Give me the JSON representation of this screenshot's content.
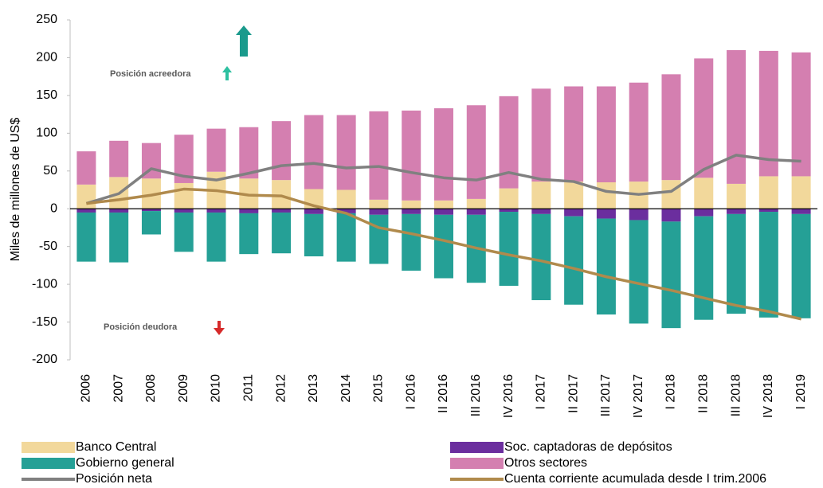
{
  "chart_data": {
    "type": "bar",
    "stacked": true,
    "ylabel": "Miles de millones de US$",
    "annotations": [
      "Posición acreedora",
      "Posición deudora"
    ],
    "categories": [
      "2006",
      "2007",
      "2008",
      "2009",
      "2010",
      "2011",
      "2012",
      "2013",
      "2014",
      "2015",
      "I 2016",
      "II 2016",
      "III 2016",
      "IV 2016",
      "I 2017",
      "II 2017",
      "III 2017",
      "IV 2017",
      "I 2018",
      "II 2018",
      "III 2018",
      "IV 2018",
      "I 2019"
    ],
    "ylim": [
      -200,
      250
    ],
    "yticks": [
      -200,
      -150,
      -100,
      -50,
      0,
      50,
      100,
      150,
      200,
      250
    ],
    "series": [
      {
        "name": "Banco Central",
        "color": "#f2d89b",
        "values": [
          32,
          42,
          40,
          34,
          49,
          40,
          38,
          26,
          25,
          12,
          11,
          11,
          13,
          27,
          36,
          36,
          35,
          36,
          38,
          41,
          33,
          43,
          43
        ]
      },
      {
        "name": "Soc. captadoras de depósitos",
        "color": "#6b2e9e",
        "values": [
          -5,
          -5,
          -3,
          -5,
          -5,
          -6,
          -5,
          -7,
          -6,
          -8,
          -7,
          -8,
          -8,
          -4,
          -7,
          -10,
          -13,
          -15,
          -17,
          -10,
          -7,
          -4,
          -7
        ]
      },
      {
        "name": "Gobierno general",
        "color": "#25a096",
        "values": [
          -65,
          -66,
          -31,
          -52,
          -65,
          -54,
          -54,
          -56,
          -64,
          -65,
          -75,
          -84,
          -90,
          -98,
          -114,
          -117,
          -127,
          -137,
          -141,
          -137,
          -132,
          -140,
          -138
        ]
      },
      {
        "name": "Otros sectores",
        "color": "#d47fb0",
        "values": [
          44,
          48,
          47,
          64,
          57,
          68,
          78,
          98,
          99,
          117,
          119,
          122,
          124,
          122,
          123,
          126,
          127,
          131,
          140,
          158,
          177,
          166,
          164
        ]
      },
      {
        "name": "Posición neta",
        "color": "#808080",
        "type": "line",
        "values": [
          7,
          20,
          53,
          43,
          38,
          47,
          57,
          60,
          54,
          56,
          48,
          41,
          38,
          48,
          39,
          36,
          23,
          19,
          23,
          52,
          71,
          65,
          63
        ]
      },
      {
        "name": "Cuenta corriente acumulada desde I trim.2006",
        "color": "#b08a4c",
        "type": "line",
        "values": [
          7,
          12,
          18,
          26,
          24,
          18,
          17,
          4,
          -6,
          -25,
          -33,
          -42,
          -52,
          -61,
          -69,
          -79,
          -90,
          -99,
          -108,
          -118,
          -128,
          -136,
          -146
        ]
      }
    ]
  }
}
